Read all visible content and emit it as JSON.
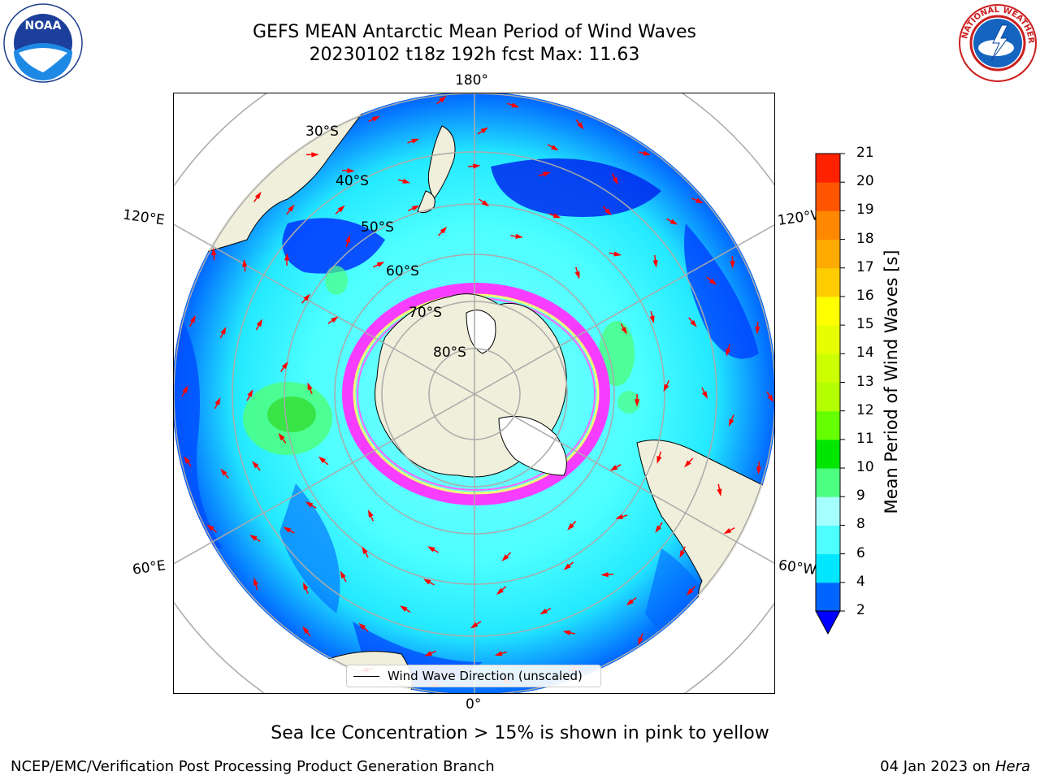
{
  "title": {
    "line1": "GEFS MEAN Antarctic Mean Period of Wind Waves",
    "line2": "20230102 t18z 192h fcst   Max: 11.63"
  },
  "logos": {
    "left": {
      "icon": "noaa-logo",
      "text": "NOAA"
    },
    "right": {
      "icon": "nws-logo",
      "text": "NATIONAL WEATHER SERVICE"
    }
  },
  "map": {
    "projection": "south-polar-stereographic",
    "lon_labels": {
      "top": "180°",
      "bottom": "0°",
      "upper_left": "120°E",
      "upper_right": "120°W",
      "lower_left": "60°E",
      "lower_right": "60°W"
    },
    "lat_labels": [
      "30°S",
      "40°S",
      "50°S",
      "60°S",
      "70°S",
      "80°S"
    ],
    "legend_label": "Wind Wave Direction (unscaled)",
    "colors": {
      "land": "#efefdb",
      "ice_pink": "#ff33ff",
      "ice_yellow": "#ffff66",
      "arrow": "#ff0000"
    }
  },
  "colorbar": {
    "label": "Mean Period of Wind Waves [s]",
    "ticks": [
      "2",
      "4",
      "6",
      "8",
      "9",
      "10",
      "11",
      "12",
      "13",
      "14",
      "15",
      "16",
      "17",
      "18",
      "19",
      "20",
      "21"
    ],
    "colors": [
      "#0064ff",
      "#00e6ff",
      "#4dffff",
      "#a6ffff",
      "#4dff80",
      "#00e600",
      "#66ff00",
      "#b3ff00",
      "#ccff00",
      "#e6ff00",
      "#ffff00",
      "#ffcc00",
      "#ffaa00",
      "#ff8800",
      "#ff5500",
      "#ff2200"
    ],
    "under_color": "#0000ff"
  },
  "chart_data": {
    "type": "heatmap",
    "title": "GEFS MEAN Antarctic Mean Period of Wind Waves",
    "subtitle": "20230102 t18z 192h fcst   Max: 11.63",
    "variable": "Mean Period of Wind Waves [s]",
    "max": 11.63,
    "colorbar_range": [
      2,
      21
    ],
    "colorbar_ticks": [
      2,
      4,
      6,
      8,
      9,
      10,
      11,
      12,
      13,
      14,
      15,
      16,
      17,
      18,
      19,
      20,
      21
    ]
  },
  "footer": {
    "note": "Sea Ice Concentration > 15% is shown in pink to yellow",
    "left": "NCEP/EMC/Verification Post Processing Product Generation Branch",
    "date": "04 Jan 2023 on",
    "host": "Hera"
  }
}
